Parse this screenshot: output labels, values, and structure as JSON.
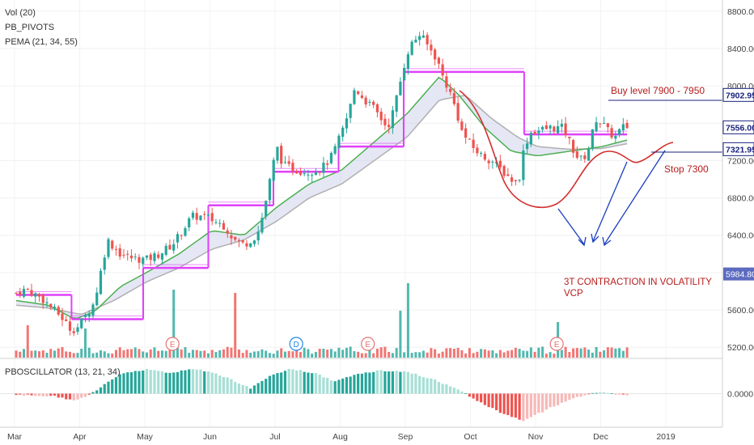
{
  "legend": {
    "vol": "Vol (20)",
    "pivots": "PB_PIVOTS",
    "pema": "PEMA (21, 34, 55)",
    "osc": "PBOSCILLATOR (13, 21, 34)"
  },
  "annotations": {
    "buy_level": "Buy level 7900 - 7950",
    "stop": "Stop 7300",
    "vcp_line1": "3T CONTRACTION IN VOLATILITY",
    "vcp_line2": "VCP"
  },
  "event_markers": [
    {
      "label": "E",
      "month_pos": 2.4
    },
    {
      "label": "D",
      "month_pos": 4.3
    },
    {
      "label": "E",
      "month_pos": 5.4
    },
    {
      "label": "E",
      "month_pos": 8.3
    }
  ],
  "colors": {
    "up": "#26a69a",
    "down": "#ef5350",
    "pivot": "#e040fb",
    "pema_fast": "#4caf50",
    "pema_slow": "#b0b0b0",
    "ribbon": "#c5cae9",
    "curve": "#d32f2f",
    "arrow": "#1a3fbf",
    "level_line": "#1a237e",
    "annotation_text": "#b71c1c"
  },
  "chart_data": [
    {
      "type": "candlestick",
      "title": "",
      "x_tick_labels": [
        "Mar",
        "Apr",
        "May",
        "Jun",
        "Jul",
        "Aug",
        "Sep",
        "Oct",
        "Nov",
        "Dec",
        "2019"
      ],
      "y_tick_labels": [
        "5200.00",
        "5600.00",
        "6000.00",
        "6400.00",
        "6800.00",
        "7200.00",
        "7600.00",
        "8000.00",
        "8400.00",
        "8800.00"
      ],
      "ylim": [
        5080,
        8920
      ],
      "price_tags": [
        {
          "value": 7902.95,
          "label": "7902.95",
          "style": "outline"
        },
        {
          "value": 7556.0,
          "label": "7556.00",
          "style": "outline"
        },
        {
          "value": 7321.95,
          "label": "7321.95",
          "style": "outline"
        },
        {
          "value": 5984.8,
          "label": "5984.80",
          "style": "filled"
        }
      ],
      "price_waypoints": [
        [
          0.0,
          5780
        ],
        [
          0.15,
          5820
        ],
        [
          0.4,
          5720
        ],
        [
          0.7,
          5520
        ],
        [
          0.85,
          5380
        ],
        [
          0.95,
          5420
        ],
        [
          1.05,
          5520
        ],
        [
          1.2,
          5680
        ],
        [
          1.4,
          6350
        ],
        [
          1.6,
          6200
        ],
        [
          1.8,
          6150
        ],
        [
          2.0,
          6140
        ],
        [
          2.2,
          6200
        ],
        [
          2.4,
          6300
        ],
        [
          2.55,
          6450
        ],
        [
          2.7,
          6600
        ],
        [
          2.9,
          6600
        ],
        [
          3.05,
          6550
        ],
        [
          3.2,
          6500
        ],
        [
          3.35,
          6350
        ],
        [
          3.5,
          6300
        ],
        [
          3.7,
          6400
        ],
        [
          3.8,
          6650
        ],
        [
          3.9,
          7000
        ],
        [
          4.0,
          7350
        ],
        [
          4.1,
          7150
        ],
        [
          4.3,
          7100
        ],
        [
          4.5,
          7080
        ],
        [
          4.7,
          7120
        ],
        [
          4.85,
          7250
        ],
        [
          5.0,
          7500
        ],
        [
          5.1,
          7700
        ],
        [
          5.2,
          7980
        ],
        [
          5.35,
          7850
        ],
        [
          5.5,
          7750
        ],
        [
          5.6,
          7650
        ],
        [
          5.7,
          7550
        ],
        [
          5.8,
          7750
        ],
        [
          5.9,
          8050
        ],
        [
          6.0,
          8350
        ],
        [
          6.1,
          8480
        ],
        [
          6.2,
          8550
        ],
        [
          6.3,
          8450
        ],
        [
          6.45,
          8300
        ],
        [
          6.55,
          8100
        ],
        [
          6.65,
          7950
        ],
        [
          6.75,
          7750
        ],
        [
          6.85,
          7500
        ],
        [
          7.0,
          7350
        ],
        [
          7.15,
          7250
        ],
        [
          7.3,
          7200
        ],
        [
          7.45,
          7100
        ],
        [
          7.6,
          7000
        ],
        [
          7.7,
          6950
        ],
        [
          7.75,
          7100
        ],
        [
          7.8,
          7350
        ],
        [
          7.9,
          7500
        ],
        [
          8.0,
          7520
        ],
        [
          8.2,
          7550
        ],
        [
          8.4,
          7550
        ],
        [
          8.5,
          7400
        ],
        [
          8.6,
          7250
        ],
        [
          8.7,
          7200
        ],
        [
          8.8,
          7350
        ],
        [
          8.9,
          7650
        ],
        [
          9.0,
          7600
        ],
        [
          9.1,
          7500
        ],
        [
          9.2,
          7450
        ],
        [
          9.3,
          7550
        ],
        [
          9.38,
          7560
        ]
      ],
      "pivot_levels": [
        {
          "x0": 0.0,
          "x1": 0.85,
          "y": 5760
        },
        {
          "x0": 0.85,
          "x1": 1.95,
          "y": 5500
        },
        {
          "x0": 1.95,
          "x1": 2.95,
          "y": 6050
        },
        {
          "x0": 2.95,
          "x1": 3.95,
          "y": 6720
        },
        {
          "x0": 3.95,
          "x1": 4.95,
          "y": 7080
        },
        {
          "x0": 4.95,
          "x1": 5.95,
          "y": 7350
        },
        {
          "x0": 5.95,
          "x1": 7.8,
          "y": 8150
        },
        {
          "x0": 7.8,
          "x1": 9.38,
          "y": 7480
        }
      ],
      "ema_fast_waypoints": [
        [
          0.0,
          5700
        ],
        [
          0.5,
          5650
        ],
        [
          0.9,
          5500
        ],
        [
          1.2,
          5580
        ],
        [
          1.6,
          5850
        ],
        [
          2.0,
          6000
        ],
        [
          2.5,
          6200
        ],
        [
          3.0,
          6450
        ],
        [
          3.5,
          6400
        ],
        [
          4.0,
          6700
        ],
        [
          4.5,
          6950
        ],
        [
          5.0,
          7100
        ],
        [
          5.5,
          7400
        ],
        [
          6.0,
          7700
        ],
        [
          6.5,
          8100
        ],
        [
          6.8,
          7900
        ],
        [
          7.2,
          7550
        ],
        [
          7.6,
          7300
        ],
        [
          8.0,
          7250
        ],
        [
          8.5,
          7300
        ],
        [
          9.0,
          7350
        ],
        [
          9.38,
          7420
        ]
      ],
      "ema_slow_waypoints": [
        [
          0.0,
          5650
        ],
        [
          0.5,
          5620
        ],
        [
          1.0,
          5550
        ],
        [
          1.5,
          5700
        ],
        [
          2.0,
          5900
        ],
        [
          2.5,
          6050
        ],
        [
          3.0,
          6250
        ],
        [
          3.5,
          6350
        ],
        [
          4.0,
          6550
        ],
        [
          4.5,
          6800
        ],
        [
          5.0,
          6950
        ],
        [
          5.5,
          7200
        ],
        [
          6.0,
          7450
        ],
        [
          6.5,
          7850
        ],
        [
          6.9,
          7900
        ],
        [
          7.3,
          7650
        ],
        [
          7.7,
          7450
        ],
        [
          8.0,
          7350
        ],
        [
          8.5,
          7320
        ],
        [
          9.0,
          7330
        ],
        [
          9.38,
          7380
        ]
      ]
    },
    {
      "type": "bar",
      "title": "",
      "volume_spikes": [
        [
          0.15,
          1.0
        ],
        [
          1.05,
          0.9
        ],
        [
          2.4,
          2.1
        ],
        [
          3.35,
          2.0
        ],
        [
          5.9,
          1.45
        ],
        [
          6.0,
          2.3
        ],
        [
          8.3,
          1.1
        ]
      ]
    },
    {
      "type": "bar",
      "title": "",
      "y_tick_labels": [
        "0.0000"
      ],
      "ylim": [
        -1.3,
        1.3
      ],
      "osc_waypoints": [
        [
          0.0,
          -0.05
        ],
        [
          0.6,
          -0.1
        ],
        [
          0.9,
          -0.3
        ],
        [
          1.1,
          -0.05
        ],
        [
          1.3,
          0.25
        ],
        [
          1.6,
          0.75
        ],
        [
          2.0,
          0.95
        ],
        [
          2.4,
          0.8
        ],
        [
          2.7,
          0.95
        ],
        [
          3.0,
          0.85
        ],
        [
          3.3,
          0.55
        ],
        [
          3.6,
          0.2
        ],
        [
          3.9,
          0.7
        ],
        [
          4.2,
          0.95
        ],
        [
          4.6,
          0.8
        ],
        [
          4.9,
          0.45
        ],
        [
          5.2,
          0.75
        ],
        [
          5.6,
          0.9
        ],
        [
          6.0,
          0.85
        ],
        [
          6.4,
          0.55
        ],
        [
          6.8,
          0.15
        ],
        [
          7.0,
          -0.15
        ],
        [
          7.4,
          -0.7
        ],
        [
          7.8,
          -1.05
        ],
        [
          8.2,
          -0.55
        ],
        [
          8.6,
          -0.15
        ],
        [
          8.9,
          0.05
        ],
        [
          9.38,
          -0.05
        ]
      ]
    }
  ]
}
